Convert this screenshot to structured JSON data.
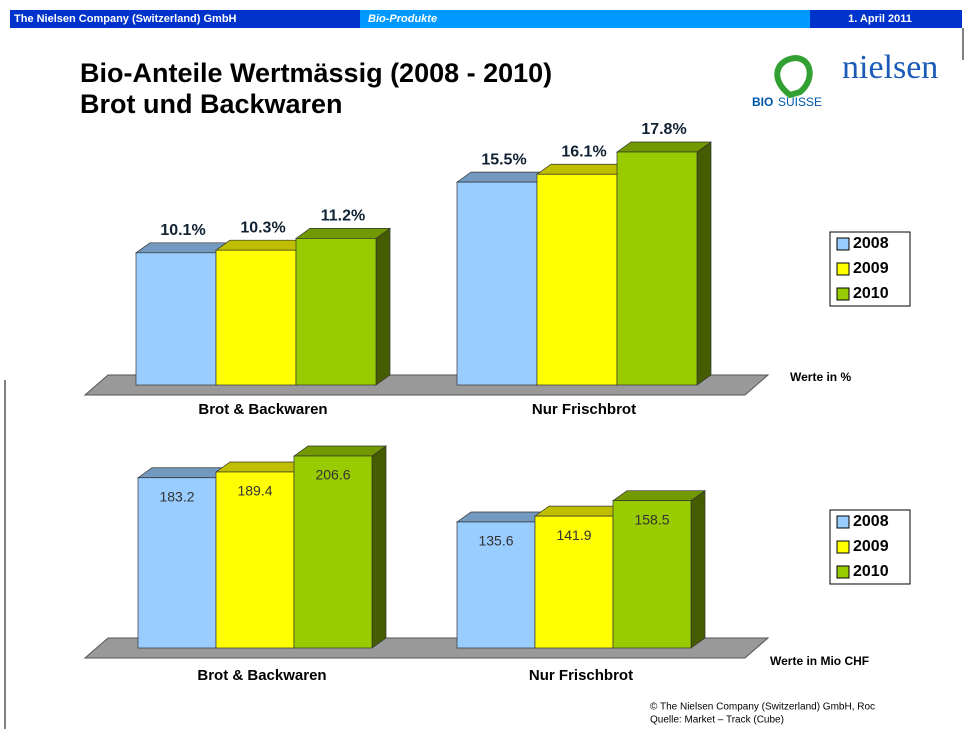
{
  "header": {
    "company": "The Nielsen Company (Switzerland) GmbH",
    "section": "Bio-Produkte",
    "date": "1. April 2011"
  },
  "title": [
    "Bio-Anteile Wertmässig (2008 - 2010)",
    "Brot und Backwaren"
  ],
  "logos": {
    "nielsen": "nielsen",
    "bio": "BIO",
    "suisse": "SUISSE"
  },
  "footer": [
    "© The Nielsen Company (Switzerland) GmbH, Roc",
    "Quelle: Market – Track (Cube)"
  ],
  "chart_data": [
    {
      "type": "bar3d",
      "unit_label": "Werte in %",
      "categories": [
        "Brot & Backwaren",
        "Nur Frischbrot"
      ],
      "series": [
        {
          "name": "2008",
          "color": "#99ccff",
          "values": [
            10.1,
            15.5
          ],
          "value_labels": [
            "10.1%",
            "15.5%"
          ]
        },
        {
          "name": "2009",
          "color": "#ffff00",
          "values": [
            10.3,
            16.1
          ],
          "value_labels": [
            "10.3%",
            "16.1%"
          ]
        },
        {
          "name": "2010",
          "color": "#99cc00",
          "values": [
            11.2,
            17.8
          ],
          "value_labels": [
            "11.2%",
            "17.8%"
          ]
        }
      ]
    },
    {
      "type": "bar3d",
      "unit_label": "Werte in Mio CHF",
      "categories": [
        "Brot & Backwaren",
        "Nur Frischbrot"
      ],
      "series": [
        {
          "name": "2008",
          "color": "#99ccff",
          "values": [
            183.2,
            135.6
          ]
        },
        {
          "name": "2009",
          "color": "#ffff00",
          "values": [
            189.4,
            141.9
          ]
        },
        {
          "name": "2010",
          "color": "#99cc00",
          "values": [
            206.6,
            158.5
          ]
        }
      ]
    }
  ]
}
